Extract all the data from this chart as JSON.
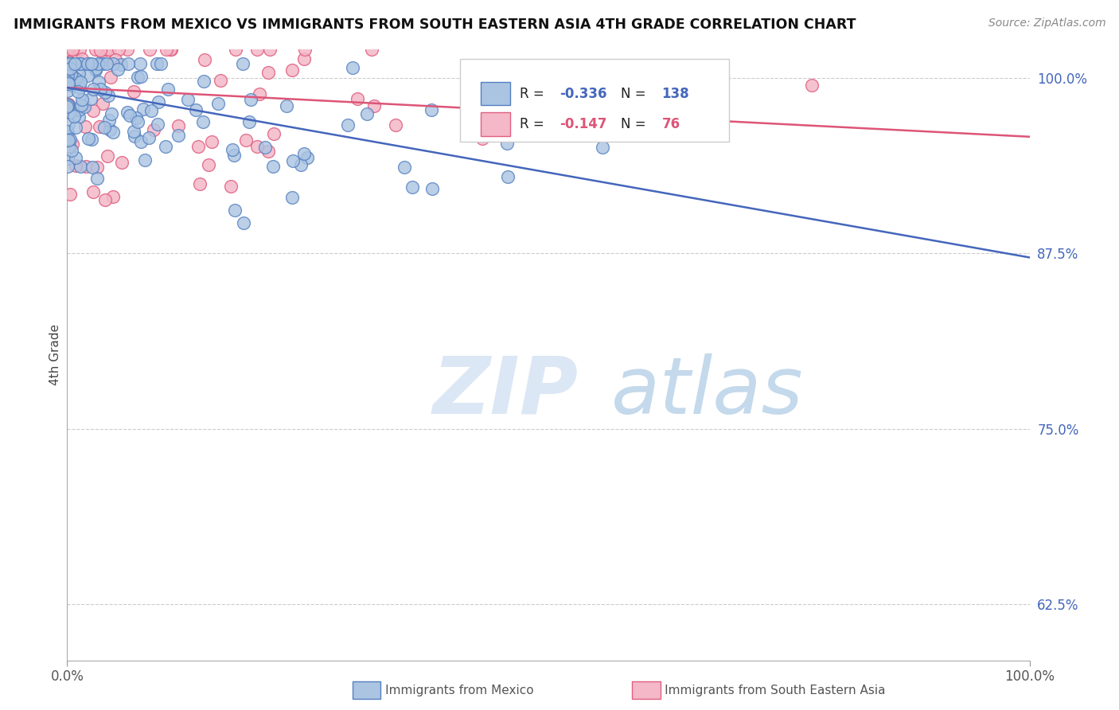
{
  "title": "IMMIGRANTS FROM MEXICO VS IMMIGRANTS FROM SOUTH EASTERN ASIA 4TH GRADE CORRELATION CHART",
  "source": "Source: ZipAtlas.com",
  "ylabel": "4th Grade",
  "xlim": [
    0.0,
    1.0
  ],
  "ylim": [
    0.585,
    1.02
  ],
  "yticks": [
    0.625,
    0.75,
    0.875,
    1.0
  ],
  "ytick_labels": [
    "62.5%",
    "75.0%",
    "87.5%",
    "100.0%"
  ],
  "xtick_labels": [
    "0.0%",
    "100.0%"
  ],
  "blue_R": -0.336,
  "blue_N": 138,
  "pink_R": -0.147,
  "pink_N": 76,
  "blue_color": "#aac4e2",
  "blue_edge_color": "#5580c0",
  "pink_color": "#f4b8c8",
  "pink_edge_color": "#e06080",
  "blue_line_color": "#4466bb",
  "pink_line_color": "#dd5577",
  "blue_line_y0": 0.993,
  "blue_line_y1": 0.872,
  "pink_line_y0": 0.993,
  "pink_line_y1": 0.958,
  "watermark_zip": "ZIP",
  "watermark_atlas": "atlas",
  "scatter_marker_size": 130
}
